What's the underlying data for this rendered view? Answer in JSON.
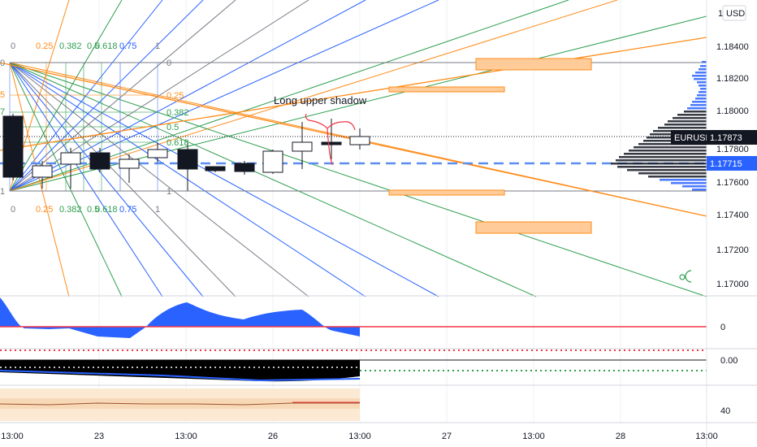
{
  "currency": "USD",
  "top_partial_label": "1",
  "annotation": "Long upper shadow",
  "symbol": "EURUSD",
  "last_price": "1.17873",
  "line_price": "1.17715",
  "price_axis": [
    "1.18400",
    "1.18200",
    "1.18000",
    "1.17800",
    "1.17600",
    "1.17400",
    "1.17200",
    "1.17000"
  ],
  "time_axis": [
    "13:00",
    "23",
    "13:00",
    "26",
    "13:00",
    "27",
    "13:00",
    "28",
    "13:00"
  ],
  "fib_top": [
    "0",
    "0.25",
    "0.382",
    "0.5",
    "0.618",
    "0.75",
    "1"
  ],
  "fib_right": [
    "0",
    "0.25",
    "0.382",
    "0.5",
    "0.618",
    "1"
  ],
  "fib_left": [
    "0",
    "5",
    "7",
    "1"
  ],
  "indicator1_label": "0",
  "indicator2_label": "0.00",
  "indicator3_label": "40",
  "colors": {
    "orange": "#ff8c1a",
    "green": "#2e9e4f",
    "blue": "#2962ff",
    "gray": "#787b86",
    "red": "#f23645",
    "blue_line": "#5b8def",
    "box_fill": "#ffcc99"
  },
  "icons": {
    "theme": "sun-moon-icon"
  }
}
